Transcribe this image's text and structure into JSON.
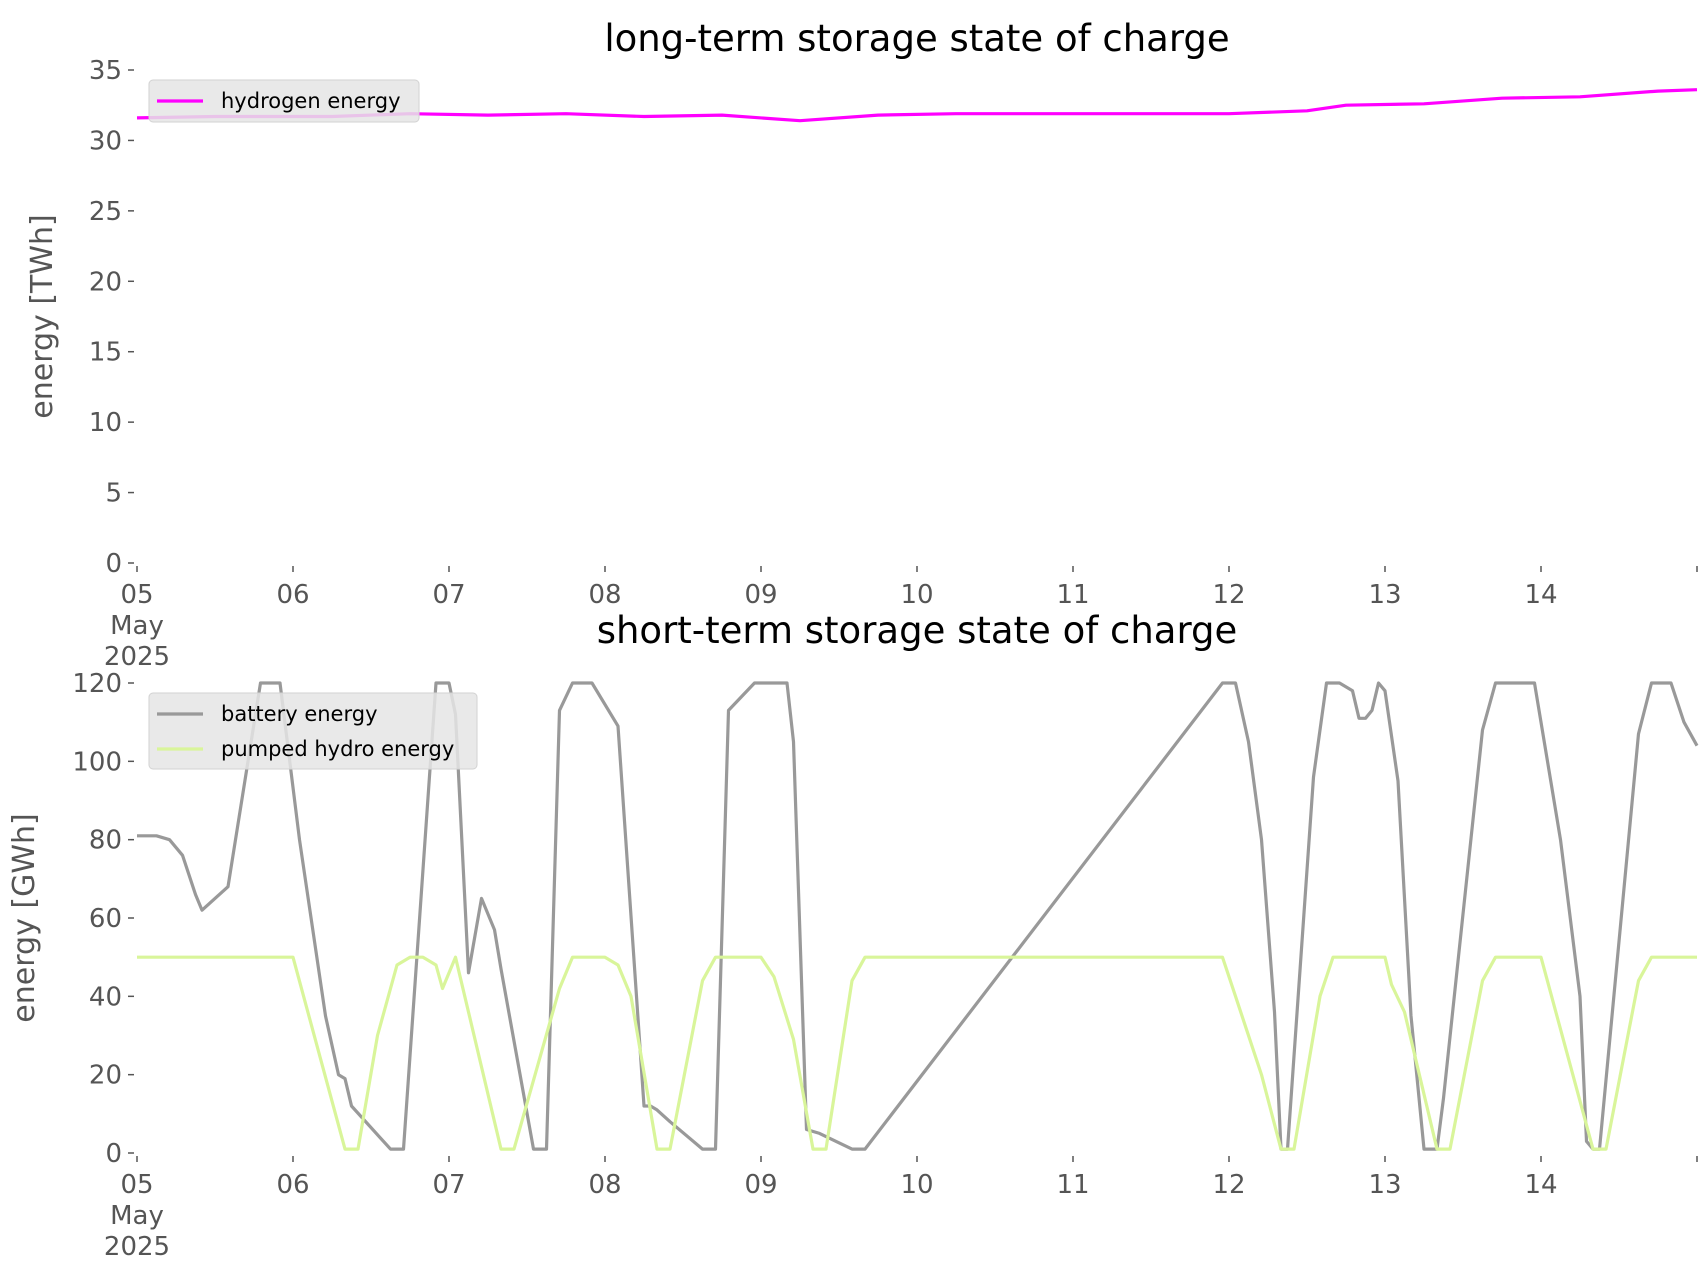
{
  "chart_data": [
    {
      "type": "line",
      "title": "long-term storage state of charge",
      "ylabel": "energy [TWh]",
      "ylim": [
        0,
        35
      ],
      "yticks": [
        0,
        5,
        10,
        15,
        20,
        25,
        30,
        35
      ],
      "xlim": [
        "2025-05-05 00:00",
        "2025-05-15 00:00"
      ],
      "xtick_labels": [
        "05\nMay\n2025",
        "06",
        "07",
        "08",
        "09",
        "10",
        "11",
        "12",
        "13",
        "14"
      ],
      "grid": false,
      "legend_position": "top-left",
      "series": [
        {
          "name": "hydrogen energy",
          "color": "#ff00ff",
          "x": [
            "2025-05-05 00:00",
            "2025-05-05 12:00",
            "2025-05-06 00:00",
            "2025-05-06 06:00",
            "2025-05-06 18:00",
            "2025-05-07 06:00",
            "2025-05-07 18:00",
            "2025-05-08 06:00",
            "2025-05-08 18:00",
            "2025-05-09 06:00",
            "2025-05-09 18:00",
            "2025-05-10 06:00",
            "2025-05-11 00:00",
            "2025-05-12 00:00",
            "2025-05-12 12:00",
            "2025-05-12 18:00",
            "2025-05-13 06:00",
            "2025-05-13 18:00",
            "2025-05-14 06:00",
            "2025-05-14 18:00",
            "2025-05-15 00:00"
          ],
          "values": [
            31.6,
            31.7,
            31.7,
            31.7,
            31.9,
            31.8,
            31.9,
            31.7,
            31.8,
            31.4,
            31.8,
            31.9,
            31.9,
            31.9,
            32.1,
            32.5,
            32.6,
            33.0,
            33.1,
            33.5,
            33.6
          ]
        }
      ]
    },
    {
      "type": "line",
      "title": "short-term storage state of charge",
      "ylabel": "energy [GWh]",
      "ylim": [
        0,
        120
      ],
      "yticks": [
        0,
        20,
        40,
        60,
        80,
        100,
        120
      ],
      "xlim": [
        "2025-05-05 00:00",
        "2025-05-15 00:00"
      ],
      "xtick_labels": [
        "05\nMay\n2025",
        "06",
        "07",
        "08",
        "09",
        "10",
        "11",
        "12",
        "13",
        "14"
      ],
      "grid": false,
      "legend_position": "top-left",
      "series": [
        {
          "name": "battery energy",
          "color": "#999999",
          "x": [
            "2025-05-05 00:00",
            "2025-05-05 03:00",
            "2025-05-05 05:00",
            "2025-05-05 07:00",
            "2025-05-05 09:00",
            "2025-05-05 10:00",
            "2025-05-05 14:00",
            "2025-05-05 19:00",
            "2025-05-05 22:00",
            "2025-05-06 01:00",
            "2025-05-06 05:00",
            "2025-05-06 07:00",
            "2025-05-06 08:00",
            "2025-05-06 09:00",
            "2025-05-06 15:00",
            "2025-05-06 17:00",
            "2025-05-06 22:00",
            "2025-05-07 00:00",
            "2025-05-07 01:00",
            "2025-05-07 03:00",
            "2025-05-07 05:00",
            "2025-05-07 07:00",
            "2025-05-07 08:00",
            "2025-05-07 13:00",
            "2025-05-07 15:00",
            "2025-05-07 17:00",
            "2025-05-07 19:00",
            "2025-05-07 22:00",
            "2025-05-08 02:00",
            "2025-05-08 06:00",
            "2025-05-08 07:00",
            "2025-05-08 08:00",
            "2025-05-08 10:00",
            "2025-05-08 15:00",
            "2025-05-08 17:00",
            "2025-05-08 19:00",
            "2025-05-08 23:00",
            "2025-05-09 04:00",
            "2025-05-09 05:00",
            "2025-05-09 07:00",
            "2025-05-09 09:00",
            "2025-05-09 14:00",
            "2025-05-09 16:00",
            "2025-05-11 23:00",
            "2025-05-12 01:00",
            "2025-05-12 03:00",
            "2025-05-12 05:00",
            "2025-05-12 07:00",
            "2025-05-12 08:00",
            "2025-05-12 09:00",
            "2025-05-12 13:00",
            "2025-05-12 15:00",
            "2025-05-12 17:00",
            "2025-05-12 19:00",
            "2025-05-12 20:00",
            "2025-05-12 21:00",
            "2025-05-12 22:00",
            "2025-05-12 23:00",
            "2025-05-13 00:00",
            "2025-05-13 02:00",
            "2025-05-13 04:00",
            "2025-05-13 06:00",
            "2025-05-13 08:00",
            "2025-05-13 09:00",
            "2025-05-13 15:00",
            "2025-05-13 17:00",
            "2025-05-13 23:00",
            "2025-05-14 03:00",
            "2025-05-14 06:00",
            "2025-05-14 07:00",
            "2025-05-14 08:00",
            "2025-05-14 09:00",
            "2025-05-14 15:00",
            "2025-05-14 17:00",
            "2025-05-14 20:00",
            "2025-05-14 22:00",
            "2025-05-15 00:00"
          ],
          "values": [
            81,
            81,
            80,
            76,
            66,
            62,
            68,
            120,
            120,
            80,
            35,
            20,
            19,
            12,
            1,
            1,
            120,
            120,
            112,
            46,
            65,
            57,
            47,
            1,
            1,
            113,
            120,
            120,
            109,
            12,
            12,
            11,
            8,
            1,
            1,
            113,
            120,
            120,
            105,
            6,
            5,
            1,
            1,
            120,
            120,
            105,
            80,
            36,
            1,
            1,
            96,
            120,
            120,
            118,
            111,
            111,
            113,
            120,
            118,
            95,
            35,
            1,
            1,
            14,
            108,
            120,
            120,
            80,
            40,
            3,
            1,
            1,
            107,
            120,
            120,
            110,
            104
          ]
        },
        {
          "name": "pumped hydro energy",
          "color": "#d9f59a",
          "x": [
            "2025-05-05 00:00",
            "2025-05-06 00:00",
            "2025-05-06 08:00",
            "2025-05-06 10:00",
            "2025-05-06 13:00",
            "2025-05-06 16:00",
            "2025-05-06 18:00",
            "2025-05-06 20:00",
            "2025-05-06 22:00",
            "2025-05-06 23:00",
            "2025-05-07 01:00",
            "2025-05-07 08:00",
            "2025-05-07 10:00",
            "2025-05-07 17:00",
            "2025-05-07 19:00",
            "2025-05-08 00:00",
            "2025-05-08 02:00",
            "2025-05-08 04:00",
            "2025-05-08 08:00",
            "2025-05-08 10:00",
            "2025-05-08 15:00",
            "2025-05-08 17:00",
            "2025-05-09 00:00",
            "2025-05-09 02:00",
            "2025-05-09 05:00",
            "2025-05-09 08:00",
            "2025-05-09 10:00",
            "2025-05-09 14:00",
            "2025-05-09 16:00",
            "2025-05-11 23:00",
            "2025-05-12 01:00",
            "2025-05-12 05:00",
            "2025-05-12 08:00",
            "2025-05-12 10:00",
            "2025-05-12 14:00",
            "2025-05-12 16:00",
            "2025-05-13 00:00",
            "2025-05-13 01:00",
            "2025-05-13 03:00",
            "2025-05-13 08:00",
            "2025-05-13 10:00",
            "2025-05-13 15:00",
            "2025-05-13 17:00",
            "2025-05-14 00:00",
            "2025-05-14 08:00",
            "2025-05-14 10:00",
            "2025-05-14 15:00",
            "2025-05-14 17:00",
            "2025-05-15 00:00"
          ],
          "values": [
            50,
            50,
            1,
            1,
            30,
            48,
            50,
            50,
            48,
            42,
            50,
            1,
            1,
            42,
            50,
            50,
            48,
            40,
            1,
            1,
            44,
            50,
            50,
            45,
            29,
            1,
            1,
            44,
            50,
            50,
            40,
            20,
            1,
            1,
            40,
            50,
            50,
            43,
            36,
            1,
            1,
            44,
            50,
            50,
            1,
            1,
            44,
            50,
            50
          ]
        }
      ]
    }
  ]
}
